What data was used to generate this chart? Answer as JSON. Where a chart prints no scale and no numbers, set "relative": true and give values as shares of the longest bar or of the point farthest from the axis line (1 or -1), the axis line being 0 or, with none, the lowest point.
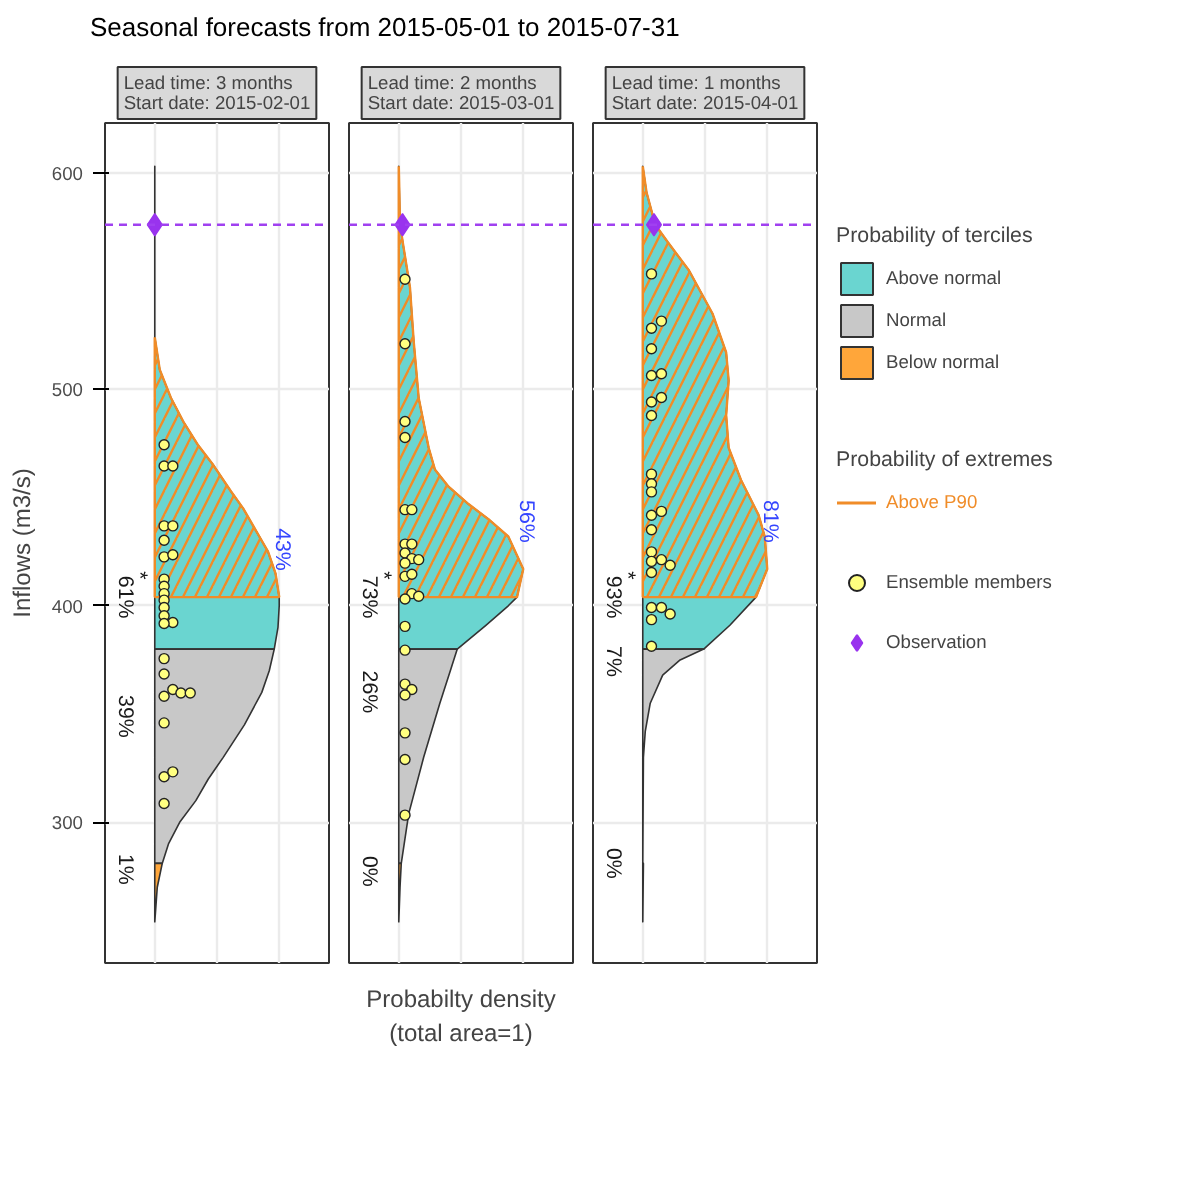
{
  "chart_data": [
    {
      "type": "area",
      "orientation": "horizontal",
      "relative": true,
      "title": "Seasonal forecasts from 2015-05-01 to 2015-07-31",
      "subtitle": "Lead time: 3 months\nStart date: 2015-02-01",
      "ylabel": "Inflows (m3/s)",
      "ylim": [
        235,
        623
      ],
      "yticks": [
        300,
        400,
        500,
        600
      ],
      "grid": true,
      "tick_labels": "y",
      "series": [
        {
          "color": "#6ad5d0",
          "x": [
            380,
            390,
            400,
            404,
            415,
            425,
            432,
            445,
            453,
            465,
            474,
            485,
            496,
            509,
            524,
            603
          ],
          "values": [
            0.96,
            0.99,
            1.0,
            1.0,
            0.97,
            0.91,
            0.84,
            0.71,
            0.61,
            0.47,
            0.35,
            0.23,
            0.13,
            0.04,
            0,
            0
          ]
        },
        {
          "color": "#c8c8c8",
          "x": [
            281,
            290,
            300,
            310,
            320,
            330,
            345,
            360,
            370,
            380
          ],
          "values": [
            0.06,
            0.11,
            0.2,
            0.33,
            0.43,
            0.55,
            0.72,
            0.86,
            0.92,
            0.96
          ]
        },
        {
          "color": "#ffa63a",
          "x": [
            254,
            270,
            281
          ],
          "values": [
            0,
            0.02,
            0.06
          ]
        },
        {
          "color": "#f08c28",
          "x": [
            404,
            415,
            425,
            432,
            445,
            453,
            465,
            474,
            485,
            496,
            509,
            524
          ],
          "values": [
            1.0,
            0.97,
            0.91,
            0.84,
            0.71,
            0.61,
            0.47,
            0.35,
            0.23,
            0.13,
            0.04,
            0
          ]
        },
        {
          "type": "scatter",
          "marker": "circle",
          "color": "#ffff80",
          "x": [
            474.4,
            464.6,
            464.6,
            436.9,
            436.9,
            430.3,
            422.6,
            423.6,
            412.3,
            409,
            405.6,
            402.6,
            399.2,
            395.4,
            392.3,
            391.8,
            375.6,
            368.5,
            361.3,
            358.2,
            359.7,
            359.7,
            345.9,
            321,
            323.3,
            308.7
          ],
          "values": [
            0.075,
            0.075,
            0.145,
            0.075,
            0.145,
            0.075,
            0.075,
            0.145,
            0.075,
            0.075,
            0.075,
            0.075,
            0.075,
            0.075,
            0.145,
            0.075,
            0.075,
            0.075,
            0.145,
            0.075,
            0.21,
            0.285,
            0.075,
            0.075,
            0.145,
            0.075
          ]
        },
        {
          "type": "scatter",
          "marker": "diamond",
          "color": "#9933ee",
          "x": [
            576
          ],
          "values": [
            0
          ]
        }
      ],
      "ref_lines": [
        {
          "axis": "y",
          "value": 576,
          "color": "#a040f0",
          "line_style": "dashed"
        }
      ],
      "annotations": [
        "*",
        "61%",
        "39%",
        "1%",
        "43%"
      ]
    },
    {
      "type": "area",
      "orientation": "horizontal",
      "relative": true,
      "subtitle": "Lead time: 2 months\nStart date: 2015-03-01",
      "xlabel": "Probabilty density\n(total area=1)",
      "ylim": [
        235,
        623
      ],
      "yticks": [
        300,
        400,
        500,
        600
      ],
      "grid": true,
      "tick_labels": false,
      "series": [
        {
          "color": "#6ad5d0",
          "x": [
            380,
            391,
            400,
            404,
            417,
            432,
            440,
            447,
            455,
            463,
            473,
            496,
            522,
            547,
            565,
            576,
            603
          ],
          "values": [
            0.47,
            0.7,
            0.88,
            0.95,
            1.0,
            0.88,
            0.72,
            0.56,
            0.4,
            0.29,
            0.24,
            0.16,
            0.12,
            0.09,
            0.04,
            0.01,
            0
          ]
        },
        {
          "color": "#c8c8c8",
          "x": [
            281,
            304,
            330,
            355,
            371,
            380
          ],
          "values": [
            0.02,
            0.08,
            0.2,
            0.33,
            0.42,
            0.47
          ]
        },
        {
          "color": "#ffa63a",
          "x": [
            254,
            270,
            281
          ],
          "values": [
            0,
            0.01,
            0.02
          ]
        },
        {
          "color": "#f08c28",
          "x": [
            404,
            417,
            432,
            440,
            447,
            455,
            463,
            473,
            496,
            522,
            547,
            565,
            576,
            603
          ],
          "values": [
            0.95,
            1.0,
            0.88,
            0.72,
            0.56,
            0.4,
            0.29,
            0.24,
            0.16,
            0.12,
            0.09,
            0.04,
            0.01,
            0
          ]
        },
        {
          "type": "scatter",
          "marker": "circle",
          "color": "#ffff80",
          "x": [
            550.8,
            521,
            485.1,
            477.7,
            444.4,
            444.4,
            428.5,
            428.5,
            424.4,
            421.8,
            421.3,
            419.7,
            413.6,
            414.6,
            405.6,
            403.1,
            404.4,
            390.5,
            379.5,
            363.8,
            361.3,
            358.8,
            341.3,
            329,
            303.3
          ],
          "values": [
            0.05,
            0.05,
            0.05,
            0.05,
            0.05,
            0.105,
            0.05,
            0.105,
            0.05,
            0.105,
            0.16,
            0.05,
            0.05,
            0.105,
            0.105,
            0.05,
            0.16,
            0.05,
            0.05,
            0.05,
            0.105,
            0.05,
            0.05,
            0.05,
            0.05
          ]
        },
        {
          "type": "scatter",
          "marker": "diamond",
          "color": "#9933ee",
          "x": [
            576
          ],
          "values": [
            0.03
          ]
        }
      ],
      "ref_lines": [
        {
          "axis": "y",
          "value": 576,
          "color": "#a040f0",
          "line_style": "dashed"
        }
      ],
      "annotations": [
        "*",
        "73%",
        "26%",
        "0%",
        "56%"
      ]
    },
    {
      "type": "area",
      "orientation": "horizontal",
      "relative": true,
      "subtitle": "Lead time: 1 months\nStart date: 2015-04-01",
      "ylim": [
        235,
        623
      ],
      "yticks": [
        300,
        400,
        500,
        600
      ],
      "grid": true,
      "tick_labels": false,
      "legend": "right",
      "legend_title": [
        "Probability of terciles",
        "Probability of extremes"
      ],
      "series": [
        {
          "name": "Above normal",
          "color": "#6ad5d0",
          "x": [
            380,
            391,
            404,
            417,
            432,
            442,
            458,
            473,
            488,
            504,
            517,
            535,
            555,
            568,
            576,
            591,
            603
          ],
          "values": [
            0.49,
            0.7,
            0.91,
            1.0,
            0.98,
            0.93,
            0.79,
            0.69,
            0.67,
            0.69,
            0.67,
            0.56,
            0.37,
            0.2,
            0.1,
            0.03,
            0
          ]
        },
        {
          "name": "Normal",
          "color": "#c8c8c8",
          "x": [
            281,
            330,
            342,
            355,
            368,
            375,
            380
          ],
          "values": [
            0,
            0.005,
            0.02,
            0.06,
            0.16,
            0.3,
            0.49
          ]
        },
        {
          "name": "Below normal",
          "color": "#ffa63a",
          "x": [
            254,
            281
          ],
          "values": [
            0,
            0.005
          ]
        },
        {
          "name": "Above P90",
          "color": "#f08c28",
          "x": [
            404,
            417,
            432,
            442,
            458,
            473,
            488,
            504,
            517,
            535,
            555,
            568,
            576,
            591,
            603
          ],
          "values": [
            0.91,
            1.0,
            0.98,
            0.93,
            0.79,
            0.69,
            0.67,
            0.69,
            0.67,
            0.56,
            0.37,
            0.2,
            0.1,
            0.03,
            0
          ]
        },
        {
          "name": "Ensemble members",
          "type": "scatter",
          "marker": "circle",
          "color": "#ffff80",
          "x": [
            553.3,
            528.2,
            531.5,
            518.7,
            506.4,
            507.2,
            494.1,
            496.2,
            487.9,
            460.8,
            456.4,
            452.6,
            441.8,
            443.6,
            435.1,
            424.9,
            421.3,
            420.5,
            418.7,
            415.4,
            399.2,
            399.2,
            393.6,
            396.2,
            381.3
          ],
          "values": [
            0.07,
            0.07,
            0.15,
            0.07,
            0.07,
            0.15,
            0.07,
            0.15,
            0.07,
            0.07,
            0.07,
            0.07,
            0.07,
            0.15,
            0.07,
            0.07,
            0.15,
            0.07,
            0.22,
            0.07,
            0.07,
            0.15,
            0.07,
            0.22,
            0.07
          ]
        },
        {
          "name": "Observation",
          "type": "scatter",
          "marker": "diamond",
          "color": "#9933ee",
          "x": [
            576
          ],
          "values": [
            0.09
          ]
        }
      ],
      "ref_lines": [
        {
          "axis": "y",
          "value": 576,
          "color": "#a040f0",
          "line_style": "dashed"
        }
      ],
      "annotations": [
        "*",
        "93%",
        "7%",
        "0%",
        "81%"
      ]
    }
  ]
}
